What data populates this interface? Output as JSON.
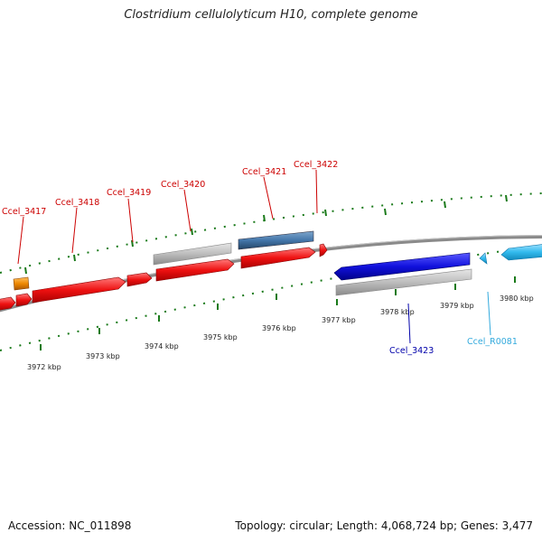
{
  "title": "Clostridium cellulolyticum H10, complete genome",
  "footer": {
    "accession": "Accession: NC_011898",
    "summary": "Topology: circular; Length: 4,068,724 bp; Genes: 3,477"
  },
  "colors": {
    "backbone": "#888888",
    "ticks": "#1a7a1a",
    "forward_gene": "#ee1111",
    "reverse_gene": "#1111dd",
    "rna": "#33bbee",
    "pseudo": "#ee8800",
    "cds_bar_gray": "#bbbbbb",
    "cds_bar_blue": "#4477aa"
  },
  "scale_labels": [
    "3972 kbp",
    "3973 kbp",
    "3974 kbp",
    "3975 kbp",
    "3976 kbp",
    "3977 kbp",
    "3978 kbp",
    "3979 kbp",
    "3980 kbp"
  ],
  "gene_labels": [
    {
      "text": "Ccel_3417",
      "color": "#cc0000"
    },
    {
      "text": "Ccel_3418",
      "color": "#cc0000"
    },
    {
      "text": "Ccel_3419",
      "color": "#cc0000"
    },
    {
      "text": "Ccel_3420",
      "color": "#cc0000"
    },
    {
      "text": "Ccel_3421",
      "color": "#cc0000"
    },
    {
      "text": "Ccel_3422",
      "color": "#cc0000"
    },
    {
      "text": "Ccel_3423",
      "color": "#0000aa"
    },
    {
      "text": "Ccel_R0081",
      "color": "#33aadd"
    }
  ]
}
